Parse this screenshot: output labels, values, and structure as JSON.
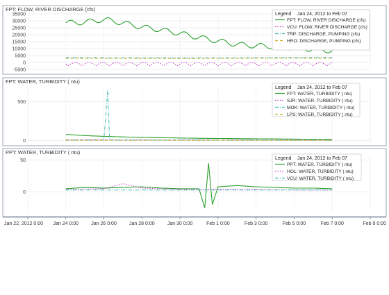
{
  "legend_title": "Legend",
  "legend_range": "Jan 24, 2012 to Feb 07",
  "x_ticks": [
    "Jan 22, 2012 0:00",
    "Jan 24 0:00",
    "Jan 26 0:00",
    "Jan 28 0:00",
    "Jan 30 0:00",
    "Feb 1 0:00",
    "Feb 3 0:00",
    "Feb 5 0:00",
    "Feb 7 0:00",
    "Feb 9 0:00"
  ],
  "chart_data": [
    {
      "type": "line",
      "title": "FPT: FLOW, RIVER DISCHARGE (cfs)",
      "x_range": [
        "2012-01-22",
        "2012-02-09"
      ],
      "ylim": [
        -5000,
        35000
      ],
      "y_ticks": [
        "35000",
        "30000",
        "25000",
        "20000",
        "15000",
        "10000",
        "5000",
        "0",
        "-5000"
      ],
      "legend_placement": "top-right",
      "grid": true,
      "series": [
        {
          "name": "FPT: FLOW, RIVER DISCHARGE (cfs)",
          "color": "#2ca02c",
          "style": "solid",
          "x": [
            "01-24",
            "01-25",
            "01-26",
            "01-27",
            "01-28",
            "01-29",
            "01-30",
            "01-31",
            "02-01",
            "02-02",
            "02-03",
            "02-04",
            "02-05",
            "02-06",
            "02-07"
          ],
          "y": [
            28500,
            29000,
            31000,
            28500,
            25500,
            23500,
            21000,
            18000,
            15500,
            13000,
            12000,
            11500,
            10500,
            9500,
            8500
          ]
        },
        {
          "name": "VCU: FLOW, RIVER DISCHARGE (cfs)",
          "color": "#c030c0",
          "style": "dotted",
          "x": [
            "01-24",
            "01-25",
            "01-26",
            "01-27",
            "01-28",
            "01-29",
            "01-30",
            "01-31",
            "02-01",
            "02-02",
            "02-03",
            "02-04",
            "02-05",
            "02-06",
            "02-07"
          ],
          "y": [
            0,
            -500,
            0,
            -500,
            0,
            -500,
            0,
            -500,
            0,
            -500,
            0,
            -500,
            0,
            -500,
            0
          ]
        },
        {
          "name": "TRP: DISCHARGE, PUMPING (cfs)",
          "color": "#40b8b0",
          "style": "dashdot",
          "x": [
            "01-24",
            "01-27",
            "01-30",
            "02-02",
            "02-05",
            "02-07"
          ],
          "y": [
            3500,
            3400,
            3300,
            3400,
            3500,
            3600
          ]
        },
        {
          "name": "HRO: DISCHARGE, PUMPING (cfs)",
          "color": "#c8b020",
          "style": "dashed",
          "x": [
            "01-24",
            "01-27",
            "01-30",
            "02-02",
            "02-05",
            "02-07"
          ],
          "y": [
            3000,
            3000,
            2900,
            3000,
            3100,
            3000
          ]
        }
      ]
    },
    {
      "type": "line",
      "title": "FPT: WATER, TURBIDITY ( ntu)",
      "x_range": [
        "2012-01-22",
        "2012-02-09"
      ],
      "ylim": [
        -30,
        700
      ],
      "y_ticks": [
        "500",
        "0"
      ],
      "legend_placement": "top-right",
      "grid": true,
      "series": [
        {
          "name": "FPT: WATER, TURBIDITY ( ntu)",
          "color": "#2ca02c",
          "style": "solid",
          "x": [
            "01-24",
            "01-25",
            "01-26",
            "01-27",
            "01-28",
            "01-29",
            "01-30",
            "01-31",
            "02-01",
            "02-02",
            "02-03",
            "02-04",
            "02-05",
            "02-06",
            "02-07"
          ],
          "y": [
            80,
            65,
            55,
            48,
            42,
            38,
            34,
            30,
            28,
            26,
            24,
            22,
            20,
            18,
            16
          ]
        },
        {
          "name": "SJR: WATER, TURBIDITY ( ntu)",
          "color": "#c030c0",
          "style": "dotted",
          "x": [
            "01-24",
            "01-26",
            "01-28",
            "01-30",
            "02-01",
            "02-03",
            "02-05",
            "02-07"
          ],
          "y": [
            12,
            11,
            10,
            10,
            9,
            9,
            8,
            8
          ]
        },
        {
          "name": "MOK: WATER, TURBIDITY ( ntu)",
          "color": "#40b8b0",
          "style": "dashdot",
          "x": [
            "01-24",
            "01-26",
            "01-26.2",
            "01-26.3",
            "01-28",
            "01-30",
            "02-01",
            "02-03",
            "02-05",
            "02-07"
          ],
          "y": [
            8,
            8,
            650,
            8,
            8,
            7,
            7,
            7,
            6,
            6
          ]
        },
        {
          "name": "LPS: WATER, TURBIDITY ( ntu)",
          "color": "#c8b020",
          "style": "dashed",
          "x": [
            "01-24",
            "01-26",
            "01-28",
            "01-30",
            "02-01",
            "02-03",
            "02-05",
            "02-07"
          ],
          "y": [
            5,
            5,
            5,
            4,
            4,
            4,
            4,
            4
          ]
        }
      ]
    },
    {
      "type": "line",
      "title": "PPT: WATER, TURBIDITY ( ntu)",
      "x_range": [
        "2012-01-22",
        "2012-02-09"
      ],
      "ylim": [
        -30,
        55
      ],
      "y_ticks": [
        "50",
        "0"
      ],
      "legend_placement": "top-right",
      "grid": true,
      "series": [
        {
          "name": "PPT: WATER, TURBIDITY ( ntu)",
          "color": "#2ca02c",
          "style": "solid",
          "x": [
            "01-24",
            "01-25",
            "01-26",
            "01-27",
            "01-28",
            "01-29",
            "01-30",
            "01-31",
            "01-31.3",
            "01-31.5",
            "01-31.7",
            "02-01",
            "02-02",
            "02-03",
            "02-04",
            "02-05",
            "02-06",
            "02-07"
          ],
          "y": [
            5,
            7,
            6,
            7,
            8,
            6,
            5,
            5,
            -25,
            45,
            -20,
            8,
            10,
            8,
            7,
            6,
            6,
            5
          ]
        },
        {
          "name": "HOL: WATER, TURBIDITY ( ntu)",
          "color": "#c030c0",
          "style": "dotted",
          "x": [
            "01-24",
            "01-26",
            "01-27",
            "01-28",
            "01-30",
            "02-01",
            "02-03",
            "02-05",
            "02-07"
          ],
          "y": [
            4,
            5,
            13,
            6,
            4,
            4,
            4,
            3,
            3
          ]
        },
        {
          "name": "VCU: WATER, TURBIDITY ( ntu)",
          "color": "#40b8b0",
          "style": "dashdot",
          "x": [
            "01-24",
            "01-26",
            "01-28",
            "01-30",
            "02-01",
            "02-03",
            "02-05",
            "02-07"
          ],
          "y": [
            3,
            3,
            3,
            3,
            3,
            3,
            3,
            3
          ]
        }
      ]
    }
  ]
}
